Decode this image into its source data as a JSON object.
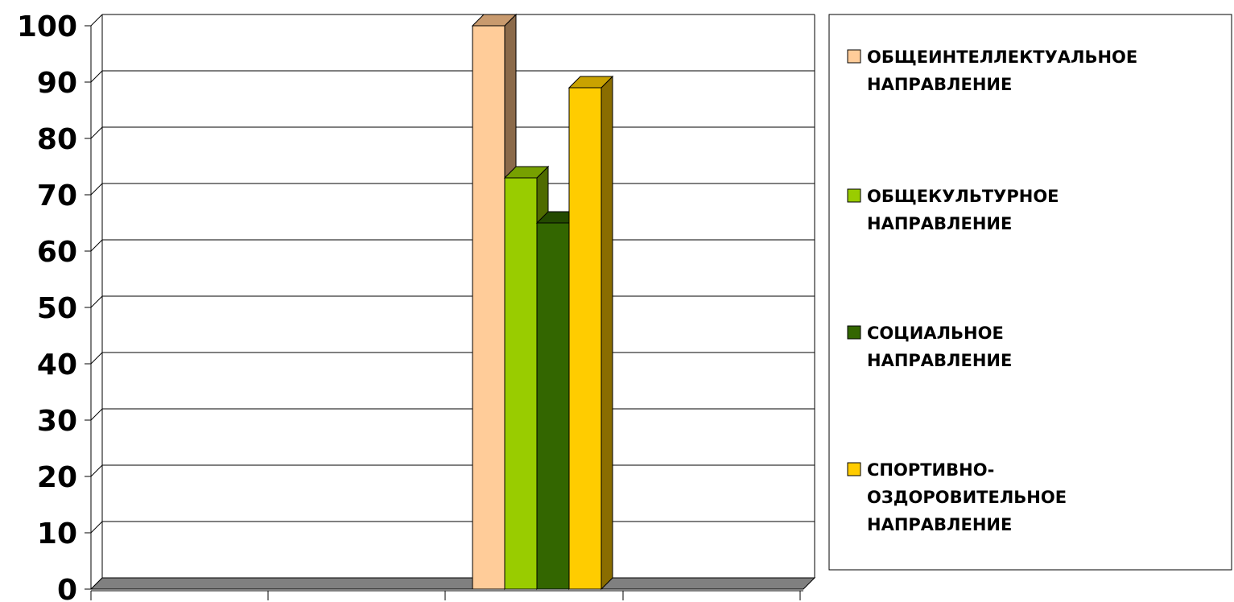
{
  "chart_data": {
    "type": "bar",
    "title": "",
    "xlabel": "",
    "ylabel": "",
    "ylim": [
      0,
      100
    ],
    "yticks": [
      0,
      10,
      20,
      30,
      40,
      50,
      60,
      70,
      80,
      90,
      100
    ],
    "grid": true,
    "legend_position": "right",
    "categories": [
      ""
    ],
    "series": [
      {
        "name_lines": [
          "ОБЩЕИНТЕЛЛЕКТУАЛЬНОЕ",
          "НАПРАВЛЕНИЕ"
        ],
        "values": [
          100
        ],
        "color": "#FFCC99",
        "side_color": "#8B6A4A",
        "top_color": "#C89A6E"
      },
      {
        "name_lines": [
          "ОБЩЕКУЛЬТУРНОЕ",
          "НАПРАВЛЕНИЕ"
        ],
        "values": [
          73
        ],
        "color": "#99CC00",
        "side_color": "#4F6B00",
        "top_color": "#77A000"
      },
      {
        "name_lines": [
          "СОЦИАЛЬНОЕ",
          "НАПРАВЛЕНИЕ"
        ],
        "values": [
          65
        ],
        "color": "#336600",
        "side_color": "#1A3300",
        "top_color": "#244A00"
      },
      {
        "name_lines": [
          "СПОРТИВНО-",
          "ОЗДОРОВИТЕЛЬНОЕ",
          "НАПРАВЛЕНИЕ"
        ],
        "values": [
          89
        ],
        "color": "#FFCC00",
        "side_color": "#8A6D00",
        "top_color": "#C9A200"
      }
    ]
  }
}
